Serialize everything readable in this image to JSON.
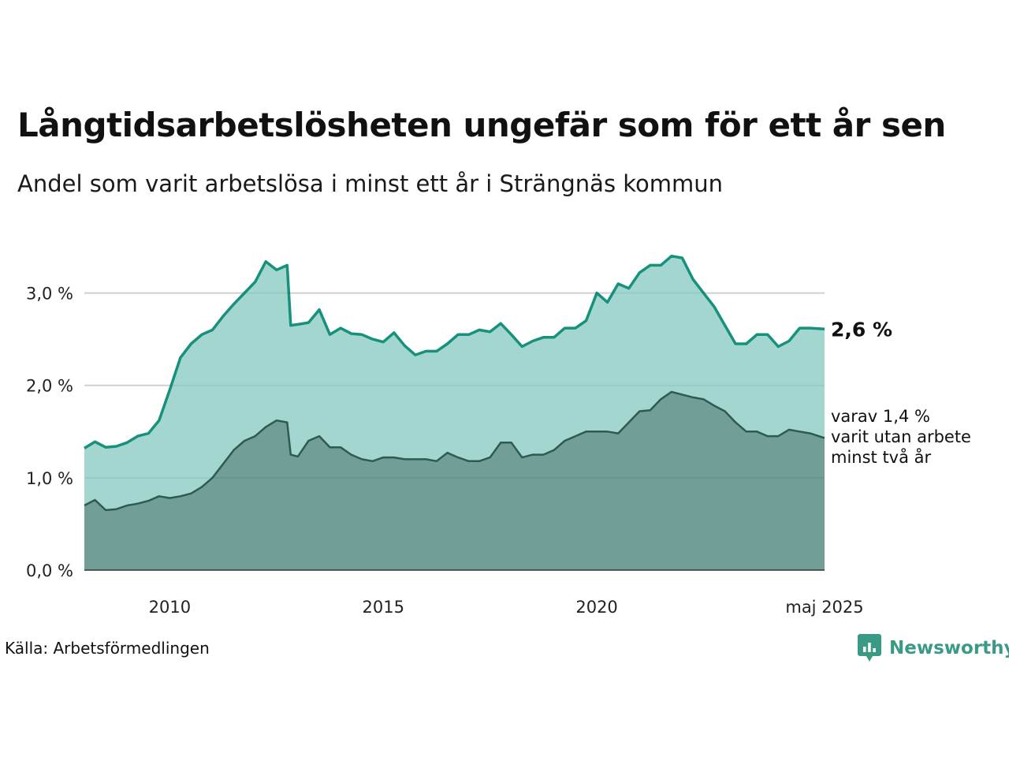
{
  "title": "Långtidsarbetslösheten ungefär som för ett år sen",
  "subtitle": "Andel som varit arbetslösa i minst ett år i Strängnäs kommun",
  "source": "Källa: Arbetsförmedlingen",
  "brand": "Newsworthy",
  "colors": {
    "series_total_line": "#17917b",
    "series_total_fill": "#a3d6cf",
    "series_two_year_line": "#2f5a52",
    "series_two_year_fill": "#719f98",
    "grid": "#dddddd",
    "brand": "#3a9a86"
  },
  "chart_data": {
    "type": "area",
    "x_range": [
      "2008-01",
      "2025-05"
    ],
    "ylim": [
      0,
      3.5
    ],
    "y_ticks": [
      0,
      1,
      2,
      3
    ],
    "y_tick_labels": [
      "0,0 %",
      "1,0 %",
      "2,0 %",
      "3,0 %"
    ],
    "x_ticks": [
      "2010-01",
      "2015-01",
      "2020-01",
      "2025-05"
    ],
    "x_tick_labels": [
      "2010",
      "2015",
      "2020",
      "maj 2025"
    ],
    "grid": true,
    "legend": "none",
    "annotations": {
      "total_end_label": "2,6 %",
      "two_year_end_label": [
        "varav 1,4 %",
        "varit utan arbete",
        "minst två år"
      ]
    },
    "series": [
      {
        "key": "total",
        "points": [
          [
            "2008-01",
            1.32
          ],
          [
            "2008-04",
            1.39
          ],
          [
            "2008-07",
            1.33
          ],
          [
            "2008-10",
            1.34
          ],
          [
            "2009-01",
            1.38
          ],
          [
            "2009-04",
            1.45
          ],
          [
            "2009-07",
            1.48
          ],
          [
            "2009-10",
            1.62
          ],
          [
            "2010-01",
            1.95
          ],
          [
            "2010-04",
            2.3
          ],
          [
            "2010-07",
            2.45
          ],
          [
            "2010-10",
            2.55
          ],
          [
            "2011-01",
            2.6
          ],
          [
            "2011-04",
            2.75
          ],
          [
            "2011-07",
            2.88
          ],
          [
            "2011-10",
            3.0
          ],
          [
            "2012-01",
            3.12
          ],
          [
            "2012-04",
            3.34
          ],
          [
            "2012-07",
            3.25
          ],
          [
            "2012-10",
            3.3
          ],
          [
            "2012-11",
            2.65
          ],
          [
            "2013-01",
            2.66
          ],
          [
            "2013-04",
            2.68
          ],
          [
            "2013-07",
            2.82
          ],
          [
            "2013-10",
            2.55
          ],
          [
            "2014-01",
            2.62
          ],
          [
            "2014-04",
            2.56
          ],
          [
            "2014-07",
            2.55
          ],
          [
            "2014-10",
            2.5
          ],
          [
            "2015-01",
            2.47
          ],
          [
            "2015-04",
            2.57
          ],
          [
            "2015-07",
            2.43
          ],
          [
            "2015-10",
            2.33
          ],
          [
            "2016-01",
            2.37
          ],
          [
            "2016-04",
            2.37
          ],
          [
            "2016-07",
            2.45
          ],
          [
            "2016-10",
            2.55
          ],
          [
            "2017-01",
            2.55
          ],
          [
            "2017-04",
            2.6
          ],
          [
            "2017-07",
            2.58
          ],
          [
            "2017-10",
            2.67
          ],
          [
            "2018-01",
            2.55
          ],
          [
            "2018-04",
            2.42
          ],
          [
            "2018-07",
            2.48
          ],
          [
            "2018-10",
            2.52
          ],
          [
            "2019-01",
            2.52
          ],
          [
            "2019-04",
            2.62
          ],
          [
            "2019-07",
            2.62
          ],
          [
            "2019-10",
            2.7
          ],
          [
            "2020-01",
            3.0
          ],
          [
            "2020-04",
            2.9
          ],
          [
            "2020-07",
            3.1
          ],
          [
            "2020-10",
            3.05
          ],
          [
            "2021-01",
            3.22
          ],
          [
            "2021-04",
            3.3
          ],
          [
            "2021-07",
            3.3
          ],
          [
            "2021-10",
            3.4
          ],
          [
            "2022-01",
            3.38
          ],
          [
            "2022-04",
            3.15
          ],
          [
            "2022-07",
            3.0
          ],
          [
            "2022-10",
            2.85
          ],
          [
            "2023-01",
            2.65
          ],
          [
            "2023-04",
            2.45
          ],
          [
            "2023-07",
            2.45
          ],
          [
            "2023-10",
            2.55
          ],
          [
            "2024-01",
            2.55
          ],
          [
            "2024-04",
            2.42
          ],
          [
            "2024-07",
            2.48
          ],
          [
            "2024-10",
            2.62
          ],
          [
            "2025-01",
            2.62
          ],
          [
            "2025-05",
            2.61
          ]
        ]
      },
      {
        "key": "two_year",
        "points": [
          [
            "2008-01",
            0.7
          ],
          [
            "2008-04",
            0.76
          ],
          [
            "2008-07",
            0.65
          ],
          [
            "2008-10",
            0.66
          ],
          [
            "2009-01",
            0.7
          ],
          [
            "2009-04",
            0.72
          ],
          [
            "2009-07",
            0.75
          ],
          [
            "2009-10",
            0.8
          ],
          [
            "2010-01",
            0.78
          ],
          [
            "2010-04",
            0.8
          ],
          [
            "2010-07",
            0.83
          ],
          [
            "2010-10",
            0.9
          ],
          [
            "2011-01",
            1.0
          ],
          [
            "2011-04",
            1.15
          ],
          [
            "2011-07",
            1.3
          ],
          [
            "2011-10",
            1.4
          ],
          [
            "2012-01",
            1.45
          ],
          [
            "2012-04",
            1.55
          ],
          [
            "2012-07",
            1.62
          ],
          [
            "2012-10",
            1.6
          ],
          [
            "2012-11",
            1.25
          ],
          [
            "2013-01",
            1.23
          ],
          [
            "2013-04",
            1.4
          ],
          [
            "2013-07",
            1.45
          ],
          [
            "2013-10",
            1.33
          ],
          [
            "2014-01",
            1.33
          ],
          [
            "2014-04",
            1.25
          ],
          [
            "2014-07",
            1.2
          ],
          [
            "2014-10",
            1.18
          ],
          [
            "2015-01",
            1.22
          ],
          [
            "2015-04",
            1.22
          ],
          [
            "2015-07",
            1.2
          ],
          [
            "2015-10",
            1.2
          ],
          [
            "2016-01",
            1.2
          ],
          [
            "2016-04",
            1.18
          ],
          [
            "2016-07",
            1.27
          ],
          [
            "2016-10",
            1.22
          ],
          [
            "2017-01",
            1.18
          ],
          [
            "2017-04",
            1.18
          ],
          [
            "2017-07",
            1.22
          ],
          [
            "2017-10",
            1.38
          ],
          [
            "2018-01",
            1.38
          ],
          [
            "2018-04",
            1.22
          ],
          [
            "2018-07",
            1.25
          ],
          [
            "2018-10",
            1.25
          ],
          [
            "2019-01",
            1.3
          ],
          [
            "2019-04",
            1.4
          ],
          [
            "2019-07",
            1.45
          ],
          [
            "2019-10",
            1.5
          ],
          [
            "2020-01",
            1.5
          ],
          [
            "2020-04",
            1.5
          ],
          [
            "2020-07",
            1.48
          ],
          [
            "2020-10",
            1.6
          ],
          [
            "2021-01",
            1.72
          ],
          [
            "2021-04",
            1.73
          ],
          [
            "2021-07",
            1.85
          ],
          [
            "2021-10",
            1.93
          ],
          [
            "2022-01",
            1.9
          ],
          [
            "2022-04",
            1.87
          ],
          [
            "2022-07",
            1.85
          ],
          [
            "2022-10",
            1.78
          ],
          [
            "2023-01",
            1.72
          ],
          [
            "2023-04",
            1.6
          ],
          [
            "2023-07",
            1.5
          ],
          [
            "2023-10",
            1.5
          ],
          [
            "2024-01",
            1.45
          ],
          [
            "2024-04",
            1.45
          ],
          [
            "2024-07",
            1.52
          ],
          [
            "2024-10",
            1.5
          ],
          [
            "2025-01",
            1.48
          ],
          [
            "2025-05",
            1.43
          ]
        ]
      }
    ]
  }
}
